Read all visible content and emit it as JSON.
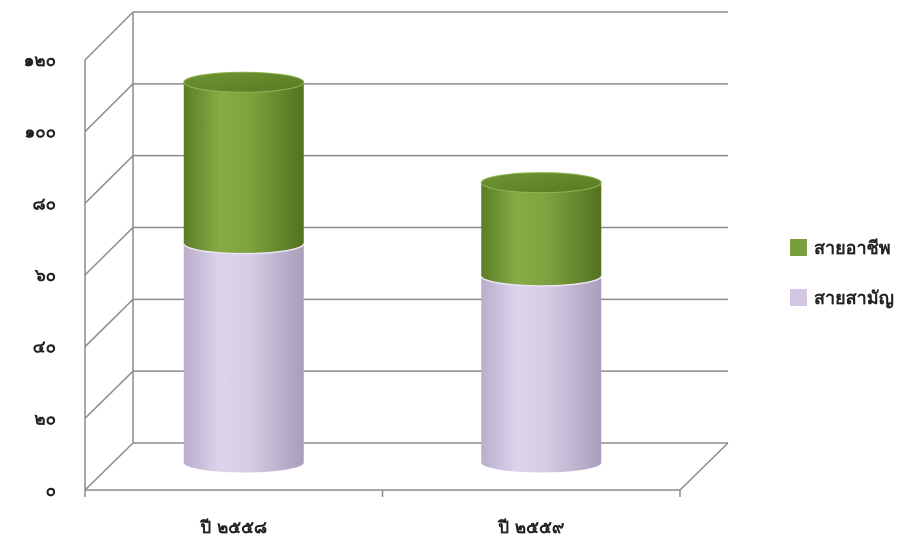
{
  "chart_data": {
    "type": "bar",
    "stacked": true,
    "three_d": "cylinder",
    "categories": [
      "ปี ๒๕๕๘",
      "ปี ๒๕๕๙"
    ],
    "series": [
      {
        "name": "สายสามัญ",
        "values": [
          61,
          52
        ],
        "color": "#D3C8E3"
      },
      {
        "name": "สายอาชีพ",
        "values": [
          45,
          26
        ],
        "color": "#7A9E3D"
      }
    ],
    "yticks": [
      "๐",
      "๒๐",
      "๔๐",
      "๖๐",
      "๘๐",
      "๑๐๐",
      "๑๒๐"
    ],
    "ylim": [
      0,
      120
    ],
    "grid": true,
    "legend_position": "right",
    "title": "",
    "xlabel": "",
    "ylabel": ""
  },
  "legend": [
    {
      "label": "สายอาชีพ",
      "color": "#7A9E3D"
    },
    {
      "label": "สายสามัญ",
      "color": "#D3C8E3"
    }
  ]
}
